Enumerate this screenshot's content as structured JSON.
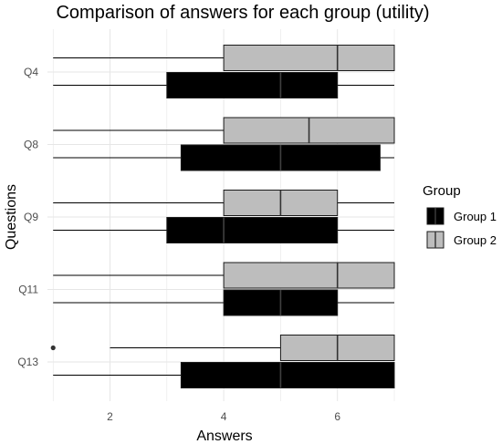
{
  "chart_data": {
    "type": "boxplot",
    "title": "Comparison of answers for each group (utility)",
    "xlabel": "Answers",
    "ylabel": "Questions",
    "xlim": [
      0.9,
      7.0
    ],
    "x_ticks": [
      2,
      4,
      6
    ],
    "grid": true,
    "orientation": "horizontal",
    "categories": [
      "Q4",
      "Q8",
      "Q9",
      "Q11",
      "Q13"
    ],
    "legend": {
      "title": "Group",
      "position": "right"
    },
    "series": [
      {
        "name": "Group 1",
        "color": "#000000",
        "median_color": "#404040",
        "boxes": [
          {
            "category": "Q4",
            "min": 1,
            "q1": 3,
            "median": 5,
            "q3": 6,
            "max": 7,
            "outliers": []
          },
          {
            "category": "Q8",
            "min": 1,
            "q1": 3.25,
            "median": 5,
            "q3": 6.75,
            "max": 7,
            "outliers": []
          },
          {
            "category": "Q9",
            "min": 1,
            "q1": 3,
            "median": 4,
            "q3": 6,
            "max": 7,
            "outliers": []
          },
          {
            "category": "Q11",
            "min": 1,
            "q1": 4,
            "median": 5,
            "q3": 6,
            "max": 7,
            "outliers": []
          },
          {
            "category": "Q13",
            "min": 1,
            "q1": 3.25,
            "median": 5,
            "q3": 7,
            "max": 7,
            "outliers": []
          }
        ]
      },
      {
        "name": "Group 2",
        "color": "#bdbdbd",
        "median_color": "#333333",
        "boxes": [
          {
            "category": "Q4",
            "min": 1,
            "q1": 4,
            "median": 6,
            "q3": 7,
            "max": 7,
            "outliers": []
          },
          {
            "category": "Q8",
            "min": 1,
            "q1": 4,
            "median": 5.5,
            "q3": 7,
            "max": 7,
            "outliers": []
          },
          {
            "category": "Q9",
            "min": 1,
            "q1": 4,
            "median": 5,
            "q3": 6,
            "max": 7,
            "outliers": []
          },
          {
            "category": "Q11",
            "min": 1,
            "q1": 4,
            "median": 6,
            "q3": 7,
            "max": 7,
            "outliers": []
          },
          {
            "category": "Q13",
            "min": 2,
            "q1": 5,
            "median": 6,
            "q3": 7,
            "max": 7,
            "outliers": [
              1
            ]
          }
        ]
      }
    ]
  }
}
